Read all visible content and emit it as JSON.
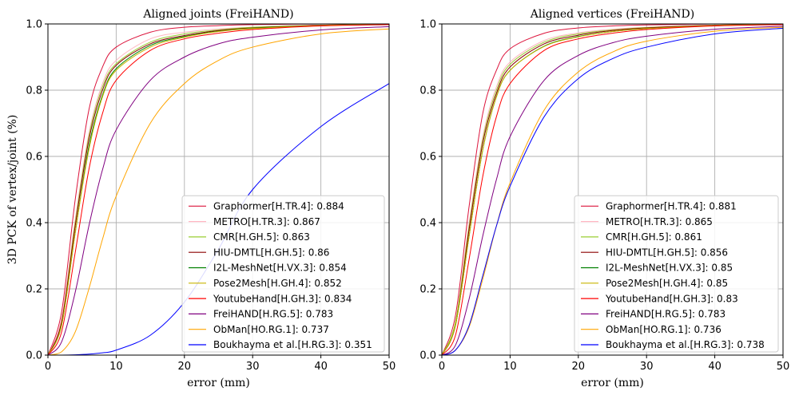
{
  "chart_data": [
    {
      "type": "line",
      "title": "Aligned joints (FreiHAND)",
      "xlabel": "error (mm)",
      "ylabel": "3D PCK of vertex/joint (%)",
      "xlim": [
        0,
        50
      ],
      "ylim": [
        0,
        1
      ],
      "xticks": [
        "0",
        "10",
        "20",
        "30",
        "40",
        "50"
      ],
      "yticks": [
        "0.0",
        "0.2",
        "0.4",
        "0.6",
        "0.8",
        "1.0"
      ],
      "grid": true,
      "legend_position": "lower right",
      "x": [
        0,
        2,
        4,
        6,
        8,
        10,
        15,
        20,
        25,
        30,
        40,
        50
      ],
      "series": [
        {
          "name": "Graphormer[H.TR.4]: 0.884",
          "color": "#dc143c",
          "values": [
            0,
            0.13,
            0.47,
            0.74,
            0.87,
            0.93,
            0.975,
            0.99,
            0.995,
            0.998,
            1.0,
            1.0
          ]
        },
        {
          "name": "METRO[H.TR.3]: 0.867",
          "color": "#ffb6c1",
          "values": [
            0,
            0.11,
            0.41,
            0.67,
            0.82,
            0.89,
            0.955,
            0.975,
            0.985,
            0.99,
            0.997,
            1.0
          ]
        },
        {
          "name": "CMR[H.GH.5]: 0.863",
          "color": "#9acd32",
          "values": [
            0,
            0.1,
            0.4,
            0.66,
            0.81,
            0.88,
            0.945,
            0.97,
            0.982,
            0.99,
            0.996,
            0.999
          ]
        },
        {
          "name": "HIU-DMTL[H.GH.5]: 0.86",
          "color": "#8b0000",
          "values": [
            0,
            0.1,
            0.39,
            0.65,
            0.8,
            0.875,
            0.94,
            0.965,
            0.98,
            0.988,
            0.996,
            0.999
          ]
        },
        {
          "name": "I2L-MeshNet[H.VX.3]: 0.854",
          "color": "#008000",
          "values": [
            0,
            0.09,
            0.37,
            0.63,
            0.785,
            0.865,
            0.935,
            0.962,
            0.978,
            0.987,
            0.995,
            0.999
          ]
        },
        {
          "name": "Pose2Mesh[H.GH.4]: 0.852",
          "color": "#c8b400",
          "values": [
            0,
            0.09,
            0.37,
            0.62,
            0.78,
            0.86,
            0.93,
            0.96,
            0.977,
            0.986,
            0.995,
            0.999
          ]
        },
        {
          "name": "YoutubeHand[H.GH.3]: 0.834",
          "color": "#ff0000",
          "values": [
            0,
            0.07,
            0.31,
            0.56,
            0.73,
            0.83,
            0.92,
            0.955,
            0.972,
            0.983,
            0.994,
            0.998
          ]
        },
        {
          "name": "FreiHAND[H.RG.5]: 0.783",
          "color": "#800080",
          "values": [
            0,
            0.04,
            0.19,
            0.39,
            0.56,
            0.68,
            0.83,
            0.9,
            0.94,
            0.96,
            0.982,
            0.992
          ]
        },
        {
          "name": "ObMan[HO.RG.1]: 0.737",
          "color": "#ffa500",
          "values": [
            0,
            0.01,
            0.07,
            0.2,
            0.35,
            0.48,
            0.7,
            0.82,
            0.89,
            0.93,
            0.97,
            0.985
          ]
        },
        {
          "name": "Boukhayma et al.[H.RG.3]: 0.351",
          "color": "#0000ff",
          "values": [
            0,
            0.0,
            0.001,
            0.003,
            0.007,
            0.015,
            0.06,
            0.16,
            0.32,
            0.5,
            0.69,
            0.82
          ]
        }
      ]
    },
    {
      "type": "line",
      "title": "Aligned vertices (FreiHAND)",
      "xlabel": "error (mm)",
      "ylabel": "",
      "xlim": [
        0,
        50
      ],
      "ylim": [
        0,
        1
      ],
      "xticks": [
        "0",
        "10",
        "20",
        "30",
        "40",
        "50"
      ],
      "yticks": [
        "0.0",
        "0.2",
        "0.4",
        "0.6",
        "0.8",
        "1.0"
      ],
      "grid": true,
      "legend_position": "lower right",
      "x": [
        0,
        2,
        4,
        6,
        8,
        10,
        15,
        20,
        25,
        30,
        40,
        50
      ],
      "series": [
        {
          "name": "Graphormer[H.TR.4]: 0.881",
          "color": "#dc143c",
          "values": [
            0,
            0.12,
            0.45,
            0.73,
            0.86,
            0.925,
            0.972,
            0.988,
            0.994,
            0.997,
            1.0,
            1.0
          ]
        },
        {
          "name": "METRO[H.TR.3]: 0.865",
          "color": "#ffb6c1",
          "values": [
            0,
            0.1,
            0.4,
            0.66,
            0.81,
            0.885,
            0.95,
            0.973,
            0.984,
            0.99,
            0.997,
            1.0
          ]
        },
        {
          "name": "CMR[H.GH.5]: 0.861",
          "color": "#9acd32",
          "values": [
            0,
            0.1,
            0.39,
            0.65,
            0.8,
            0.878,
            0.945,
            0.97,
            0.982,
            0.989,
            0.996,
            0.999
          ]
        },
        {
          "name": "HIU-DMTL[H.GH.5]: 0.856",
          "color": "#8b0000",
          "values": [
            0,
            0.09,
            0.38,
            0.64,
            0.79,
            0.87,
            0.94,
            0.966,
            0.98,
            0.988,
            0.996,
            0.999
          ]
        },
        {
          "name": "I2L-MeshNet[H.VX.3]: 0.85",
          "color": "#008000",
          "values": [
            0,
            0.09,
            0.36,
            0.62,
            0.78,
            0.86,
            0.933,
            0.962,
            0.977,
            0.986,
            0.995,
            0.999
          ]
        },
        {
          "name": "Pose2Mesh[H.GH.4]: 0.85",
          "color": "#c8b400",
          "values": [
            0,
            0.09,
            0.36,
            0.62,
            0.78,
            0.86,
            0.932,
            0.961,
            0.977,
            0.986,
            0.995,
            0.999
          ]
        },
        {
          "name": "YoutubeHand[H.GH.3]: 0.83",
          "color": "#ff0000",
          "values": [
            0,
            0.06,
            0.29,
            0.54,
            0.72,
            0.82,
            0.92,
            0.955,
            0.972,
            0.983,
            0.994,
            0.998
          ]
        },
        {
          "name": "FreiHAND[H.RG.5]: 0.783",
          "color": "#800080",
          "values": [
            0,
            0.03,
            0.17,
            0.36,
            0.53,
            0.66,
            0.83,
            0.905,
            0.943,
            0.963,
            0.984,
            0.993
          ]
        },
        {
          "name": "ObMan[HO.RG.1]: 0.736",
          "color": "#ffa500",
          "values": [
            0,
            0.015,
            0.085,
            0.23,
            0.39,
            0.52,
            0.74,
            0.855,
            0.915,
            0.948,
            0.978,
            0.99
          ]
        },
        {
          "name": "Boukhayma et al.[H.RG.3]: 0.738",
          "color": "#0000ff",
          "values": [
            0,
            0.015,
            0.09,
            0.24,
            0.39,
            0.51,
            0.72,
            0.835,
            0.895,
            0.93,
            0.97,
            0.987
          ]
        }
      ]
    }
  ]
}
